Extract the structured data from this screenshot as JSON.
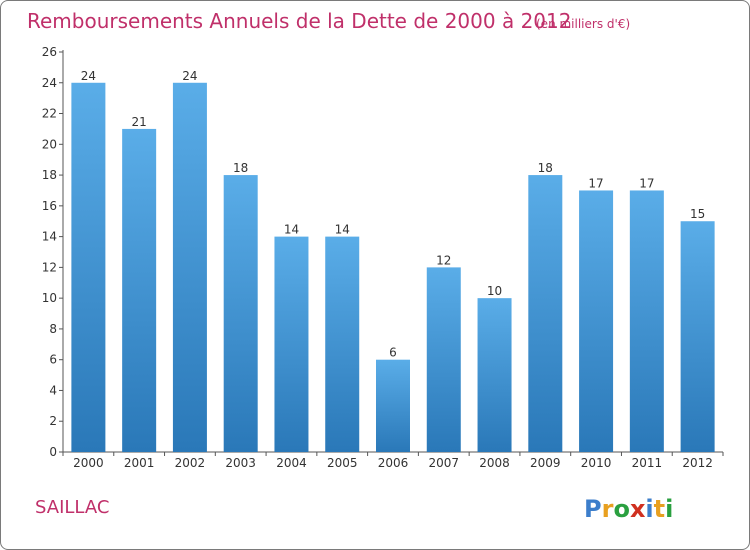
{
  "chart_data": {
    "type": "bar",
    "title": "Remboursements Annuels de la Dette de 2000 à 2012",
    "unit_note": "(en milliers d'€)",
    "categories": [
      "2000",
      "2001",
      "2002",
      "2003",
      "2004",
      "2005",
      "2006",
      "2007",
      "2008",
      "2009",
      "2010",
      "2011",
      "2012"
    ],
    "values": [
      24,
      21,
      24,
      18,
      14,
      14,
      6,
      12,
      10,
      18,
      17,
      17,
      15
    ],
    "ylim": [
      0,
      26
    ],
    "yticks": [
      0,
      2,
      4,
      6,
      8,
      10,
      12,
      14,
      16,
      18,
      20,
      22,
      24,
      26
    ],
    "grid": false,
    "bar_color_top": "#5aade8",
    "bar_color_bottom": "#2a78b8"
  },
  "commune": "SAILLAC",
  "logo": {
    "letters": [
      "P",
      "r",
      "o",
      "x",
      "i",
      "t",
      "i"
    ],
    "colors": [
      "#3c7ecb",
      "#e8a020",
      "#2aa040",
      "#d03020",
      "#3c7ecb",
      "#e8a020",
      "#2aa040"
    ]
  }
}
